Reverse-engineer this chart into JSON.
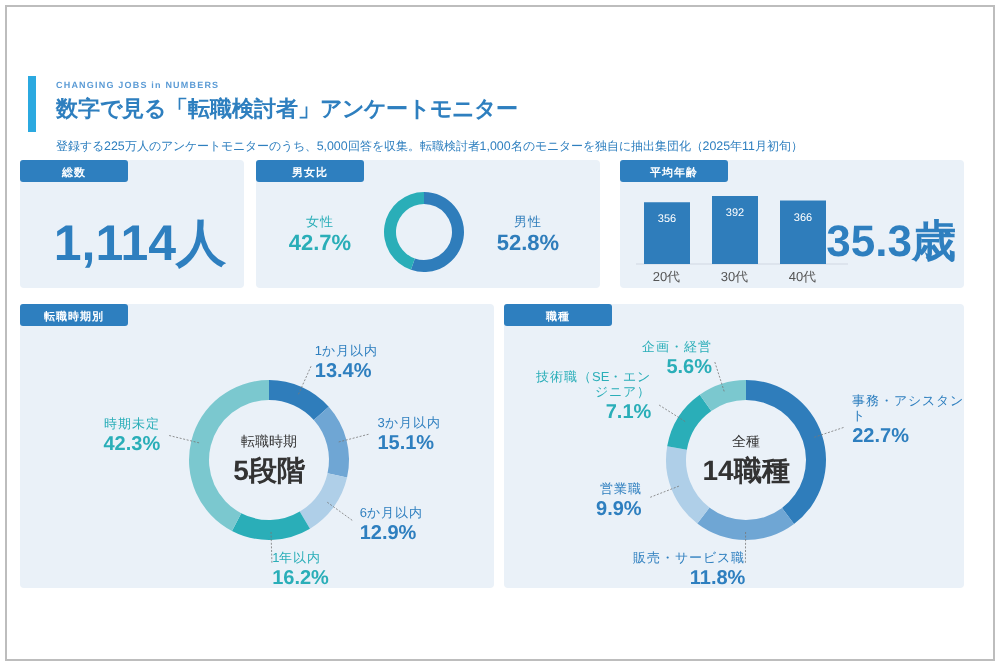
{
  "chart_data": [
    {
      "type": "other",
      "title": "数字で見る「転職検討者」アンケートモニター",
      "subtitle": "登録する225万人のアンケートモニターのうち、5,000回答を収集。転職検討者1,000名のモニターを独自に抽出集団化（2025年11月初旬）",
      "annotations": [
        "CHANGING JOBS in NUMBERS"
      ]
    },
    {
      "type": "other",
      "title": "総数",
      "annotations": [
        "1,114人"
      ]
    },
    {
      "type": "donut",
      "title": "男女比",
      "categories": [
        "男性",
        "女性"
      ],
      "values": [
        52.8,
        42.7
      ],
      "colors": [
        "#2f7dbb",
        "#2aaeb8"
      ],
      "value_labels": [
        "52.8%",
        "42.7%"
      ]
    },
    {
      "type": "bar",
      "title": "平均年齢",
      "categories": [
        "20代",
        "30代",
        "40代"
      ],
      "values": [
        356,
        392,
        366
      ],
      "color": "#2f7dbb",
      "data_labels": true,
      "annotations": [
        "35.3歳"
      ]
    },
    {
      "type": "donut",
      "title": "転職時期別",
      "categories": [
        "1か月以内",
        "3か月以内",
        "6か月以内",
        "1年以内",
        "時期未定"
      ],
      "values": [
        13.4,
        15.1,
        12.9,
        16.2,
        42.3
      ],
      "colors": [
        "#2f7dbb",
        "#6fa6d4",
        "#afcfe8",
        "#2aaeb8",
        "#7bc8cf"
      ],
      "value_labels": [
        "13.4%",
        "15.1%",
        "12.9%",
        "16.2%",
        "42.3%"
      ],
      "annotations": [
        "転職時期",
        "5段階"
      ]
    },
    {
      "type": "donut",
      "title": "職種",
      "categories": [
        "事務・アシスタント",
        "販売・サービス職",
        "営業職",
        "技術職（SE・エンジニア）",
        "企画・経営"
      ],
      "values": [
        22.7,
        11.8,
        9.9,
        7.1,
        5.6
      ],
      "colors": [
        "#2f7dbb",
        "#6fa6d4",
        "#afcfe8",
        "#2aaeb8",
        "#7bc8cf"
      ],
      "value_labels": [
        "22.7%",
        "11.8%",
        "9.9%",
        "7.1%",
        "5.6%"
      ],
      "annotations": [
        "全種",
        "14職種"
      ]
    }
  ]
}
